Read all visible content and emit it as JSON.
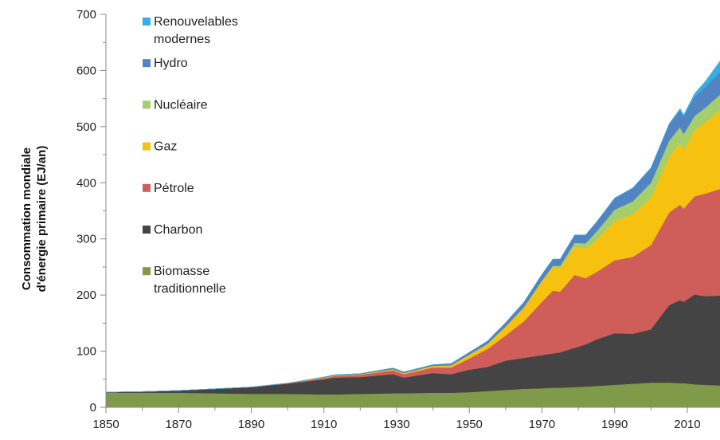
{
  "chart_data": {
    "type": "area",
    "stacked": true,
    "title": "",
    "xlabel": "",
    "ylabel_lines": [
      "Consommation mondiale",
      "d'énergie primaire (EJ/an)"
    ],
    "xlim": [
      1850,
      2019
    ],
    "ylim": [
      0,
      700
    ],
    "xticks": [
      1850,
      1870,
      1890,
      1910,
      1930,
      1950,
      1970,
      1990,
      2010
    ],
    "yticks": [
      0,
      100,
      200,
      300,
      400,
      500,
      600,
      700
    ],
    "grid": false,
    "legend_position": "top-left",
    "x": [
      1850,
      1860,
      1870,
      1880,
      1890,
      1900,
      1910,
      1913,
      1920,
      1929,
      1932,
      1940,
      1945,
      1950,
      1955,
      1960,
      1965,
      1970,
      1973,
      1975,
      1979,
      1982,
      1985,
      1990,
      1995,
      2000,
      2005,
      2008,
      2009,
      2012,
      2015,
      2019
    ],
    "series": [
      {
        "name": "Biomasse traditionnelle",
        "color": "#7f9a48",
        "values": [
          26,
          26,
          26,
          25,
          24,
          24,
          23,
          23,
          24,
          25,
          25,
          26,
          26,
          27,
          29,
          31,
          33,
          34,
          35,
          35,
          36,
          37,
          38,
          40,
          42,
          44,
          44,
          43,
          43,
          41,
          40,
          39
        ]
      },
      {
        "name": "Charbon",
        "color": "#444444",
        "values": [
          1,
          2,
          4,
          8,
          12,
          18,
          27,
          30,
          30,
          34,
          28,
          35,
          33,
          40,
          43,
          52,
          55,
          59,
          61,
          63,
          70,
          75,
          83,
          92,
          89,
          95,
          138,
          148,
          145,
          160,
          158,
          160
        ]
      },
      {
        "name": "Pétrole",
        "color": "#cf5d5a",
        "values": [
          0,
          0,
          0,
          0,
          0,
          1,
          2,
          3,
          4,
          7,
          6,
          10,
          12,
          20,
          32,
          45,
          65,
          95,
          112,
          108,
          130,
          118,
          120,
          130,
          137,
          150,
          165,
          170,
          166,
          175,
          183,
          190
        ]
      },
      {
        "name": "Gaz",
        "color": "#f7c20f",
        "values": [
          0,
          0,
          0,
          0,
          0,
          0,
          1,
          1,
          1,
          2,
          2,
          3,
          4,
          7,
          9,
          16,
          25,
          37,
          42,
          43,
          50,
          53,
          57,
          70,
          76,
          85,
          100,
          110,
          105,
          118,
          127,
          141
        ]
      },
      {
        "name": "Nucléaire",
        "color": "#a4cf6c",
        "values": [
          0,
          0,
          0,
          0,
          0,
          0,
          0,
          0,
          0,
          0,
          0,
          0,
          0,
          0,
          0,
          0,
          0,
          1,
          2,
          3,
          7,
          9,
          15,
          20,
          23,
          26,
          28,
          28,
          28,
          25,
          26,
          27
        ]
      },
      {
        "name": "Hydro",
        "color": "#5184c1",
        "values": [
          0,
          0,
          0,
          0,
          0,
          0,
          1,
          1,
          1,
          2,
          2,
          2,
          3,
          4,
          5,
          7,
          9,
          11,
          12,
          12,
          14,
          15,
          17,
          20,
          23,
          26,
          28,
          30,
          30,
          34,
          37,
          40
        ]
      },
      {
        "name": "Renouvelables modernes",
        "color": "#34aee3",
        "values": [
          0,
          0,
          0,
          0,
          0,
          0,
          0,
          0,
          0,
          0,
          0,
          0,
          0,
          0,
          0,
          0,
          0,
          0,
          0,
          0,
          0,
          0,
          0,
          1,
          1,
          1,
          2,
          3,
          4,
          6,
          10,
          20
        ]
      }
    ],
    "legend": [
      {
        "lines": [
          "Renouvelables",
          "modernes"
        ],
        "color": "#34aee3"
      },
      {
        "lines": [
          "Hydro"
        ],
        "color": "#5184c1"
      },
      {
        "lines": [
          "Nucléaire"
        ],
        "color": "#a4cf6c"
      },
      {
        "lines": [
          "Gaz"
        ],
        "color": "#f7c20f"
      },
      {
        "lines": [
          "Pétrole"
        ],
        "color": "#cf5d5a"
      },
      {
        "lines": [
          "Charbon"
        ],
        "color": "#444444"
      },
      {
        "lines": [
          "Biomasse",
          "traditionnelle"
        ],
        "color": "#7f9a48"
      }
    ]
  }
}
